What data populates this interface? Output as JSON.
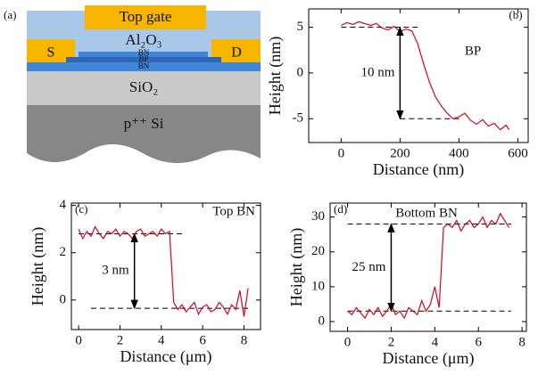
{
  "diagram": {
    "panel": "(a)",
    "top_gate": "Top gate",
    "dielectric": "Al₂O₃",
    "source": "S",
    "drain": "D",
    "layers": [
      "BN",
      "BP",
      "BN"
    ],
    "oxide": "SiO₂",
    "substrate": "p⁺⁺ Si"
  },
  "chart_data": [
    {
      "type": "line",
      "panel_label": "(b)",
      "annotation": "BP",
      "step_label": "10 nm",
      "x_label": "Distance (nm)",
      "y_label": "Height (nm)",
      "x": [
        0,
        20,
        40,
        60,
        80,
        100,
        120,
        140,
        160,
        180,
        200,
        220,
        240,
        260,
        280,
        300,
        320,
        340,
        360,
        380,
        400,
        420,
        440,
        460,
        480,
        500,
        520,
        540,
        560,
        570
      ],
      "values": [
        5.2,
        5.5,
        5.3,
        5.6,
        5.4,
        5.2,
        5.4,
        4.9,
        4.7,
        5.1,
        4.5,
        4.8,
        4.6,
        3.2,
        1.0,
        -1.0,
        -2.6,
        -3.6,
        -4.4,
        -5.0,
        -4.8,
        -4.4,
        -5.2,
        -5.6,
        -5.1,
        -5.8,
        -5.5,
        -6.2,
        -5.7,
        -6.2
      ],
      "color": "#e3001b",
      "xlim": [
        -110,
        635
      ],
      "ylim": [
        -7.6,
        7
      ],
      "xticks": [
        0,
        200,
        400,
        600
      ],
      "yticks": [
        -5,
        0,
        5
      ],
      "reference_lines": [
        {
          "y": 5,
          "x": [
            0,
            260
          ]
        },
        {
          "y": -5,
          "x": [
            200,
            400
          ]
        }
      ],
      "arrow": {
        "x": 200,
        "y": [
          5,
          -5
        ]
      }
    },
    {
      "type": "line",
      "panel_label": "(c)",
      "annotation": "Top BN",
      "step_label": "3 nm",
      "x_label": "Distance (μm)",
      "y_label": "Height (nm)",
      "x": [
        0,
        0.2,
        0.4,
        0.6,
        0.8,
        1,
        1.2,
        1.4,
        1.6,
        1.8,
        2,
        2.2,
        2.4,
        2.6,
        2.8,
        3,
        3.2,
        3.4,
        3.6,
        3.8,
        4,
        4.2,
        4.4,
        4.6,
        4.8,
        5,
        5.2,
        5.4,
        5.6,
        5.8,
        6,
        6.2,
        6.4,
        6.6,
        6.8,
        7,
        7.2,
        7.4,
        7.6,
        7.8,
        8,
        8.2
      ],
      "values": [
        3.0,
        2.6,
        2.9,
        2.7,
        3.1,
        2.8,
        2.6,
        2.9,
        2.8,
        3.0,
        2.7,
        2.9,
        2.8,
        2.6,
        2.9,
        3.0,
        2.7,
        2.8,
        2.9,
        2.7,
        3.0,
        2.8,
        2.9,
        -0.1,
        -0.4,
        -0.2,
        -0.5,
        -0.3,
        -0.1,
        -0.6,
        -0.3,
        -0.2,
        -0.5,
        -0.4,
        -0.1,
        -0.3,
        -0.6,
        -0.2,
        -0.4,
        0.4,
        -0.7,
        0.5
      ],
      "color": "#e3001b",
      "xlim": [
        -0.35,
        8.8
      ],
      "ylim": [
        -1.25,
        4.1
      ],
      "xticks": [
        0,
        2,
        4,
        6,
        8
      ],
      "yticks": [
        0,
        2,
        4
      ],
      "reference_lines": [
        {
          "y": 2.8,
          "x": [
            0,
            5
          ]
        },
        {
          "y": -0.35,
          "x": [
            0.6,
            8.2
          ]
        }
      ],
      "arrow": {
        "x": 2.7,
        "y": [
          2.8,
          -0.35
        ]
      }
    },
    {
      "type": "line",
      "panel_label": "(d)",
      "annotation": "Bottom BN",
      "step_label": "25 nm",
      "x_label": "Distance (μm)",
      "y_label": "Height (nm)",
      "x": [
        0,
        0.2,
        0.4,
        0.6,
        0.8,
        1,
        1.2,
        1.4,
        1.6,
        1.8,
        2,
        2.2,
        2.4,
        2.6,
        2.8,
        3,
        3.2,
        3.4,
        3.6,
        3.8,
        4,
        4.2,
        4.4,
        4.6,
        4.8,
        5,
        5.2,
        5.4,
        5.6,
        5.8,
        6,
        6.2,
        6.4,
        6.6,
        6.8,
        7,
        7.2,
        7.4
      ],
      "values": [
        3,
        2,
        4,
        2.5,
        1,
        3.5,
        2,
        4,
        1.5,
        3,
        5,
        2,
        3,
        1,
        4,
        3,
        2,
        6,
        3,
        5,
        10,
        4,
        27,
        28,
        27,
        29,
        26,
        28,
        29,
        27,
        28,
        30,
        27,
        29,
        28,
        31,
        29,
        27
      ],
      "color": "#e3001b",
      "xlim": [
        -0.8,
        8.2
      ],
      "ylim": [
        -2.8,
        34
      ],
      "xticks": [
        0,
        2,
        4,
        6,
        8
      ],
      "yticks": [
        0,
        10,
        20,
        30
      ],
      "reference_lines": [
        {
          "y": 28,
          "x": [
            0,
            7.5
          ]
        },
        {
          "y": 3,
          "x": [
            0,
            7.5
          ]
        }
      ],
      "arrow": {
        "x": 2,
        "y": [
          28,
          3
        ]
      }
    }
  ]
}
